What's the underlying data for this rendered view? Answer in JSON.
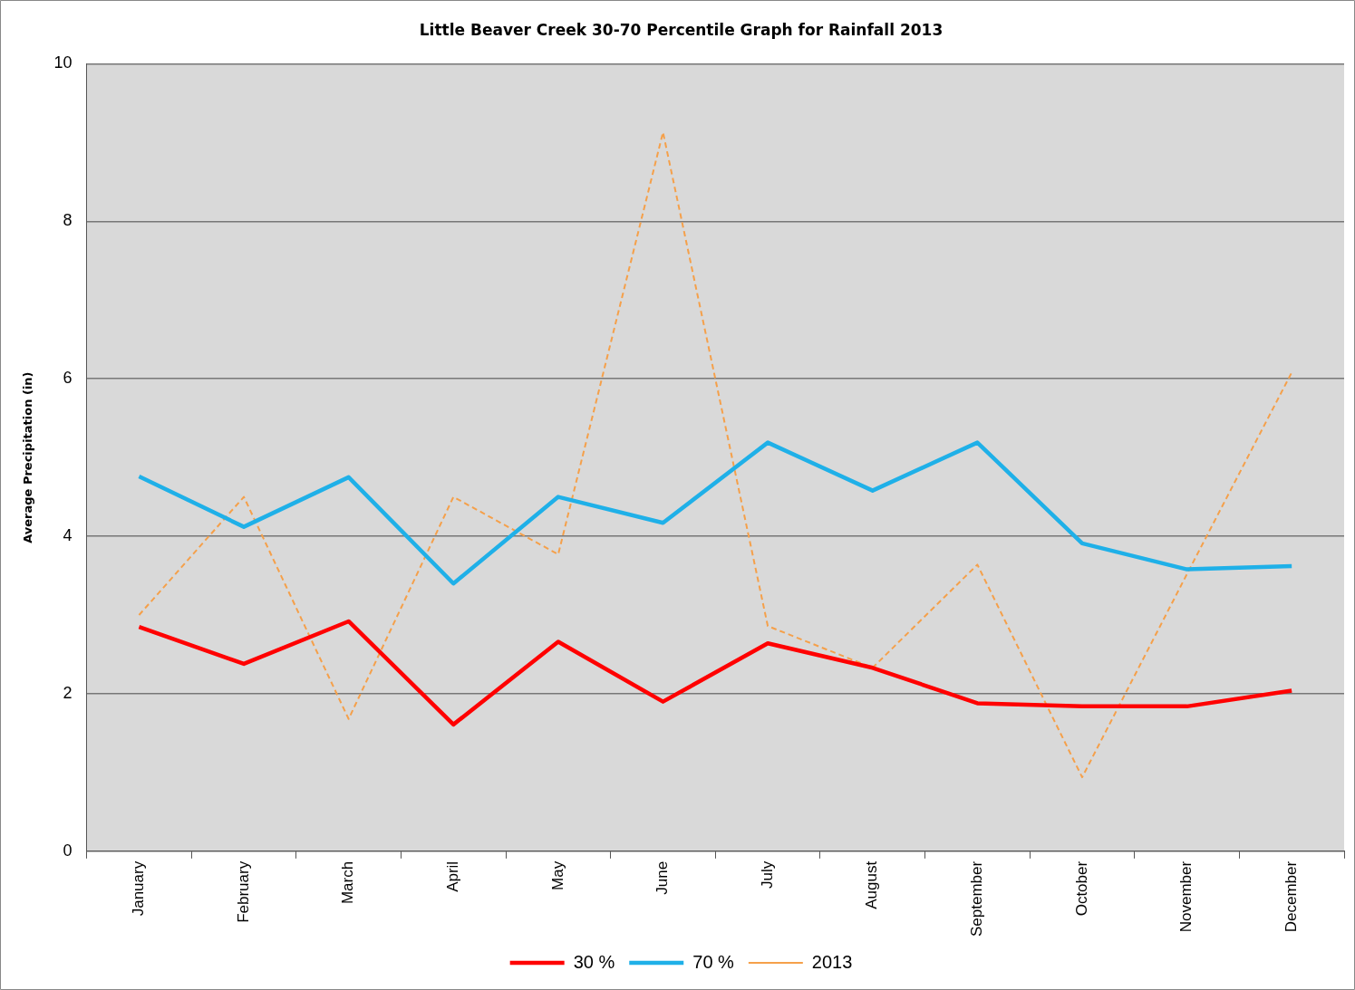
{
  "chart_data": {
    "type": "line",
    "title": "Little Beaver Creek 30-70 Percentile Graph for Rainfall 2013",
    "ylabel": "Average Precipitation (in)",
    "categories": [
      "January",
      "February",
      "March",
      "April",
      "May",
      "June",
      "July",
      "August",
      "September",
      "October",
      "November",
      "December"
    ],
    "series": [
      {
        "name": "30 %",
        "color": "#ff0000",
        "values": [
          2.85,
          2.38,
          2.92,
          1.61,
          2.66,
          1.9,
          2.64,
          2.33,
          1.88,
          1.84,
          1.84,
          2.04
        ]
      },
      {
        "name": "70 %",
        "color": "#1fb0e8",
        "values": [
          4.76,
          4.12,
          4.75,
          3.4,
          4.5,
          4.17,
          5.19,
          4.58,
          5.19,
          3.91,
          3.58,
          3.62
        ]
      },
      {
        "name": "2013",
        "color": "#f5a04a",
        "line_style": "dashed",
        "values": [
          3.0,
          4.5,
          1.68,
          4.5,
          3.77,
          9.13,
          2.86,
          2.33,
          3.64,
          0.94,
          3.52,
          6.08
        ]
      }
    ],
    "ylim": [
      0,
      10
    ],
    "yticks": [
      0,
      2,
      4,
      6,
      8,
      10
    ],
    "grid": "y",
    "legend": "bottom",
    "marker": "none"
  }
}
